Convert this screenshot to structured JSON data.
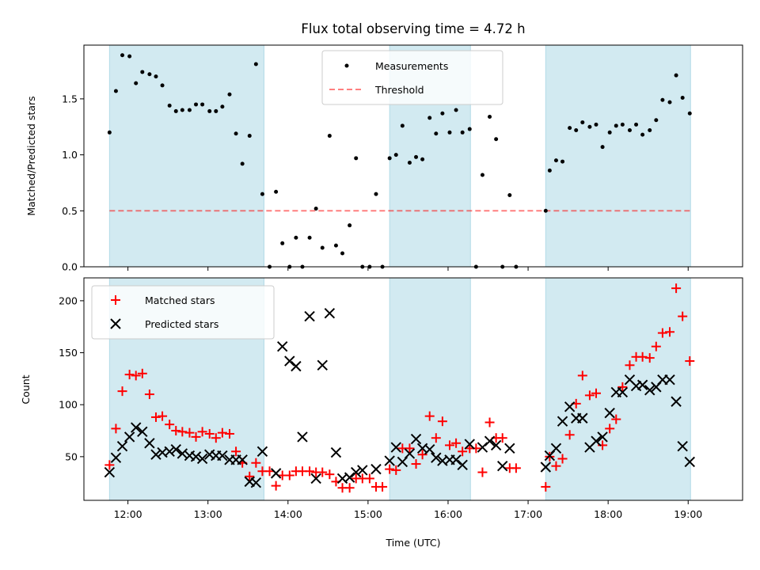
{
  "chart_data": {
    "title": "Flux total observing time = 4.72 h",
    "xlabel": "Time (UTC)",
    "xlim": [
      11.45,
      19.68
    ],
    "xticks": [
      12,
      13,
      14,
      15,
      16,
      17,
      18,
      19
    ],
    "xtick_labels": [
      "12:00",
      "13:00",
      "14:00",
      "15:00",
      "16:00",
      "17:00",
      "18:00",
      "19:00"
    ],
    "shaded_intervals": [
      [
        11.77,
        13.7
      ],
      [
        15.27,
        16.28
      ],
      [
        17.22,
        19.03
      ]
    ],
    "shade_color": "#add8e6",
    "panels": [
      {
        "type": "scatter",
        "ylabel": "Matched/Predicted stars",
        "ylim": [
          0,
          1.98
        ],
        "yticks": [
          0.0,
          0.5,
          1.0,
          1.5
        ],
        "ytick_labels": [
          "0.0",
          "0.5",
          "1.0",
          "1.5"
        ],
        "legend": {
          "position": "upper center"
        },
        "series": [
          {
            "name": "Measurements",
            "marker": "dot",
            "color": "#000000",
            "x": [
              11.77,
              11.85,
              11.93,
              12.02,
              12.1,
              12.18,
              12.27,
              12.35,
              12.43,
              12.52,
              12.6,
              12.68,
              12.77,
              12.85,
              12.93,
              13.02,
              13.1,
              13.18,
              13.27,
              13.35,
              13.43,
              13.52,
              13.6,
              13.68,
              13.77,
              13.85,
              13.93,
              14.02,
              14.1,
              14.18,
              14.27,
              14.35,
              14.43,
              14.52,
              14.6,
              14.68,
              14.77,
              14.85,
              14.93,
              15.02,
              15.1,
              15.18,
              15.27,
              15.35,
              15.43,
              15.52,
              15.6,
              15.68,
              15.77,
              15.85,
              15.93,
              16.02,
              16.1,
              16.18,
              16.27,
              16.35,
              16.43,
              16.52,
              16.6,
              16.68,
              16.77,
              16.85,
              17.22,
              17.27,
              17.35,
              17.43,
              17.52,
              17.6,
              17.68,
              17.77,
              17.85,
              17.93,
              18.02,
              18.1,
              18.18,
              18.27,
              18.35,
              18.43,
              18.52,
              18.6,
              18.68,
              18.77,
              18.85,
              18.93,
              19.02
            ],
            "y": [
              1.2,
              1.57,
              1.89,
              1.88,
              1.64,
              1.74,
              1.72,
              1.7,
              1.62,
              1.44,
              1.39,
              1.4,
              1.4,
              1.45,
              1.45,
              1.39,
              1.39,
              1.43,
              1.54,
              1.19,
              0.92,
              1.17,
              1.81,
              0.65,
              0.0,
              0.67,
              0.21,
              0.0,
              0.26,
              0.0,
              0.26,
              0.52,
              0.17,
              1.17,
              0.19,
              0.12,
              0.37,
              0.97,
              0.0,
              0.0,
              0.65,
              0.0,
              0.97,
              1.0,
              1.26,
              0.93,
              0.98,
              0.96,
              1.33,
              1.19,
              1.37,
              1.2,
              1.4,
              1.2,
              1.23,
              0.0,
              0.82,
              1.34,
              1.14,
              0.0,
              0.64,
              0.0,
              0.5,
              0.86,
              0.95,
              0.94,
              1.24,
              1.22,
              1.29,
              1.25,
              1.27,
              1.07,
              1.2,
              1.26,
              1.27,
              1.22,
              1.27,
              1.18,
              1.22,
              1.31,
              1.49,
              1.47,
              1.71,
              1.51,
              1.37
            ]
          },
          {
            "name": "Threshold",
            "type": "hline",
            "y": 0.5,
            "x_range": [
              11.77,
              19.03
            ],
            "style": "dashed",
            "color": "#ff0000"
          }
        ]
      },
      {
        "type": "scatter",
        "ylabel": "Count",
        "ylim": [
          8,
          222
        ],
        "yticks": [
          50,
          100,
          150,
          200
        ],
        "ytick_labels": [
          "50",
          "100",
          "150",
          "200"
        ],
        "legend": {
          "position": "upper left"
        },
        "series": [
          {
            "name": "Matched stars",
            "marker": "plus",
            "color": "#ff0000",
            "x": [
              11.77,
              11.85,
              11.93,
              12.02,
              12.1,
              12.18,
              12.27,
              12.35,
              12.43,
              12.52,
              12.6,
              12.68,
              12.77,
              12.85,
              12.93,
              13.02,
              13.1,
              13.18,
              13.27,
              13.35,
              13.43,
              13.52,
              13.6,
              13.68,
              13.77,
              13.85,
              13.93,
              14.02,
              14.1,
              14.18,
              14.27,
              14.35,
              14.43,
              14.52,
              14.6,
              14.68,
              14.77,
              14.85,
              14.93,
              15.02,
              15.1,
              15.18,
              15.27,
              15.35,
              15.43,
              15.52,
              15.6,
              15.68,
              15.77,
              15.85,
              15.93,
              16.02,
              16.1,
              16.18,
              16.27,
              16.35,
              16.43,
              16.52,
              16.6,
              16.68,
              16.77,
              16.85,
              17.22,
              17.27,
              17.35,
              17.43,
              17.52,
              17.6,
              17.68,
              17.77,
              17.85,
              17.93,
              18.02,
              18.1,
              18.18,
              18.27,
              18.35,
              18.43,
              18.52,
              18.6,
              18.68,
              18.77,
              18.85,
              18.93,
              19.02
            ],
            "y": [
              42,
              77,
              113,
              129,
              128,
              130,
              110,
              88,
              89,
              81,
              75,
              74,
              73,
              69,
              74,
              72,
              68,
              73,
              72,
              55,
              44,
              31,
              44,
              36,
              36,
              22,
              32,
              32,
              36,
              36,
              36,
              35,
              35,
              33,
              26,
              20,
              20,
              29,
              29,
              29,
              21,
              21,
              38,
              37,
              58,
              58,
              43,
              52,
              89,
              68,
              84,
              61,
              63,
              55,
              58,
              58,
              35,
              83,
              68,
              68,
              39,
              39,
              21,
              50,
              41,
              48,
              71,
              101,
              128,
              109,
              111,
              61,
              77,
              86,
              117,
              138,
              146,
              146,
              145,
              156,
              169,
              170,
              212,
              185,
              142
            ]
          },
          {
            "name": "Predicted stars",
            "marker": "x",
            "color": "#000000",
            "x": [
              11.77,
              11.85,
              11.93,
              12.02,
              12.1,
              12.18,
              12.27,
              12.35,
              12.43,
              12.52,
              12.6,
              12.68,
              12.77,
              12.85,
              12.93,
              13.02,
              13.1,
              13.18,
              13.27,
              13.35,
              13.43,
              13.52,
              13.6,
              13.68,
              13.85,
              13.93,
              14.02,
              14.1,
              14.18,
              14.27,
              14.35,
              14.43,
              14.52,
              14.6,
              14.68,
              14.77,
              14.85,
              14.93,
              15.1,
              15.27,
              15.35,
              15.43,
              15.52,
              15.6,
              15.68,
              15.77,
              15.85,
              15.93,
              16.02,
              16.1,
              16.18,
              16.27,
              16.43,
              16.52,
              16.6,
              16.68,
              16.77,
              17.22,
              17.27,
              17.35,
              17.43,
              17.52,
              17.6,
              17.68,
              17.77,
              17.85,
              17.93,
              18.02,
              18.1,
              18.18,
              18.27,
              18.35,
              18.43,
              18.52,
              18.6,
              18.68,
              18.77,
              18.85,
              18.93,
              19.02
            ],
            "y": [
              35,
              49,
              60,
              69,
              78,
              74,
              63,
              52,
              54,
              55,
              57,
              53,
              51,
              50,
              48,
              52,
              51,
              51,
              47,
              47,
              47,
              26,
              25,
              55,
              34,
              156,
              142,
              137,
              69,
              185,
              29,
              138,
              188,
              54,
              29,
              30,
              35,
              37,
              38,
              46,
              59,
              45,
              53,
              67,
              58,
              57,
              49,
              46,
              47,
              47,
              42,
              62,
              59,
              65,
              61,
              41,
              58,
              40,
              51,
              58,
              84,
              98,
              87,
              87,
              59,
              65,
              69,
              92,
              112,
              112,
              124,
              118,
              119,
              114,
              117,
              124,
              124,
              103,
              60,
              45
            ]
          }
        ]
      }
    ]
  }
}
